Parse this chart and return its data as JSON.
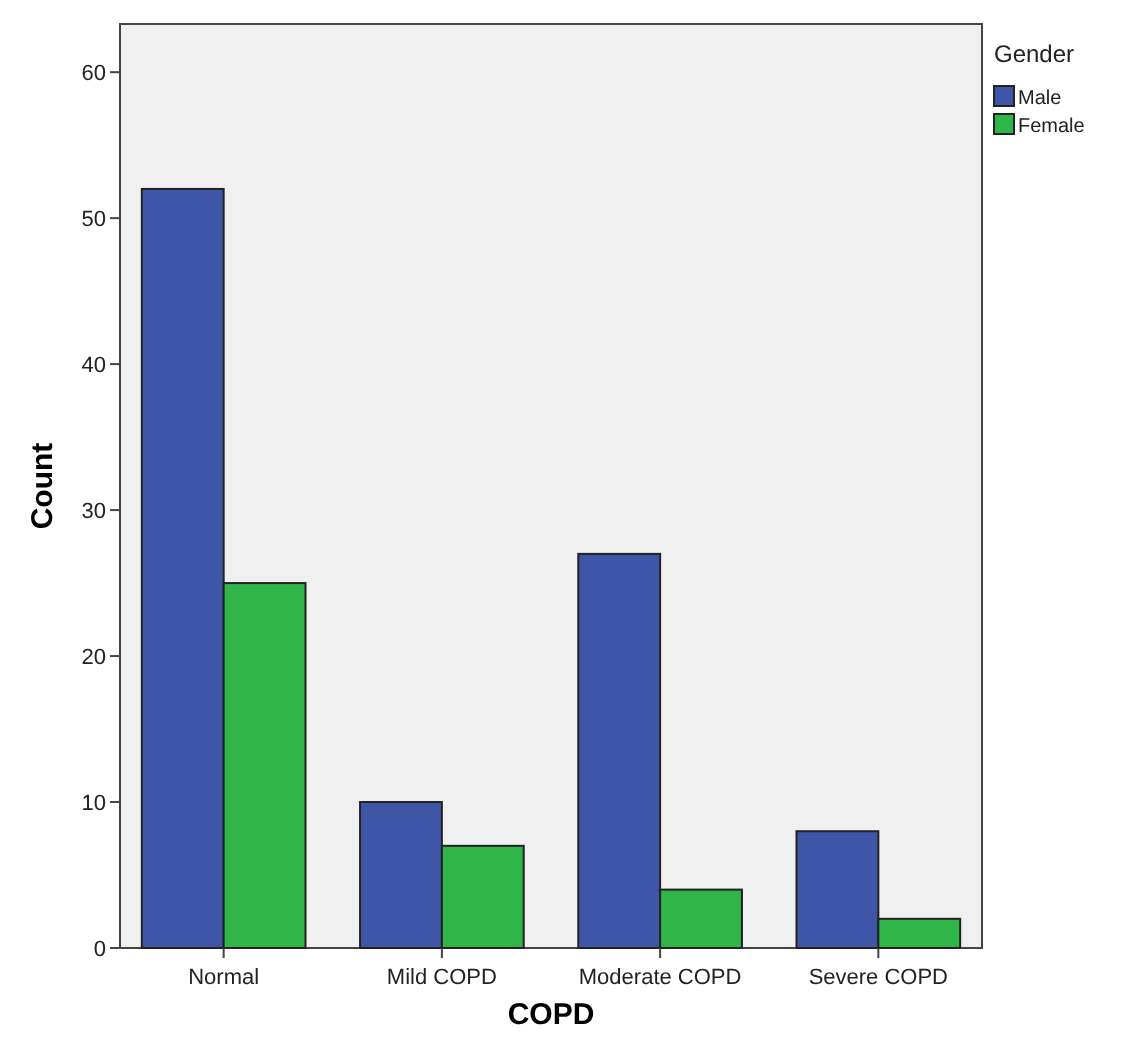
{
  "chart_data": {
    "type": "bar",
    "xlabel": "COPD",
    "ylabel": "Count",
    "legend_title": "Gender",
    "categories": [
      "Normal",
      "Mild COPD",
      "Moderate COPD",
      "Severe COPD"
    ],
    "series": [
      {
        "name": "Male",
        "color": "#3f56a8",
        "values": [
          52,
          10,
          27,
          8
        ]
      },
      {
        "name": "Female",
        "color": "#2fb548",
        "values": [
          25,
          7,
          4,
          2
        ]
      }
    ],
    "ylim": [
      0,
      63.3
    ],
    "yticks": [
      0,
      10,
      20,
      30,
      40,
      50,
      60
    ],
    "grid": false,
    "legend": "top right"
  }
}
